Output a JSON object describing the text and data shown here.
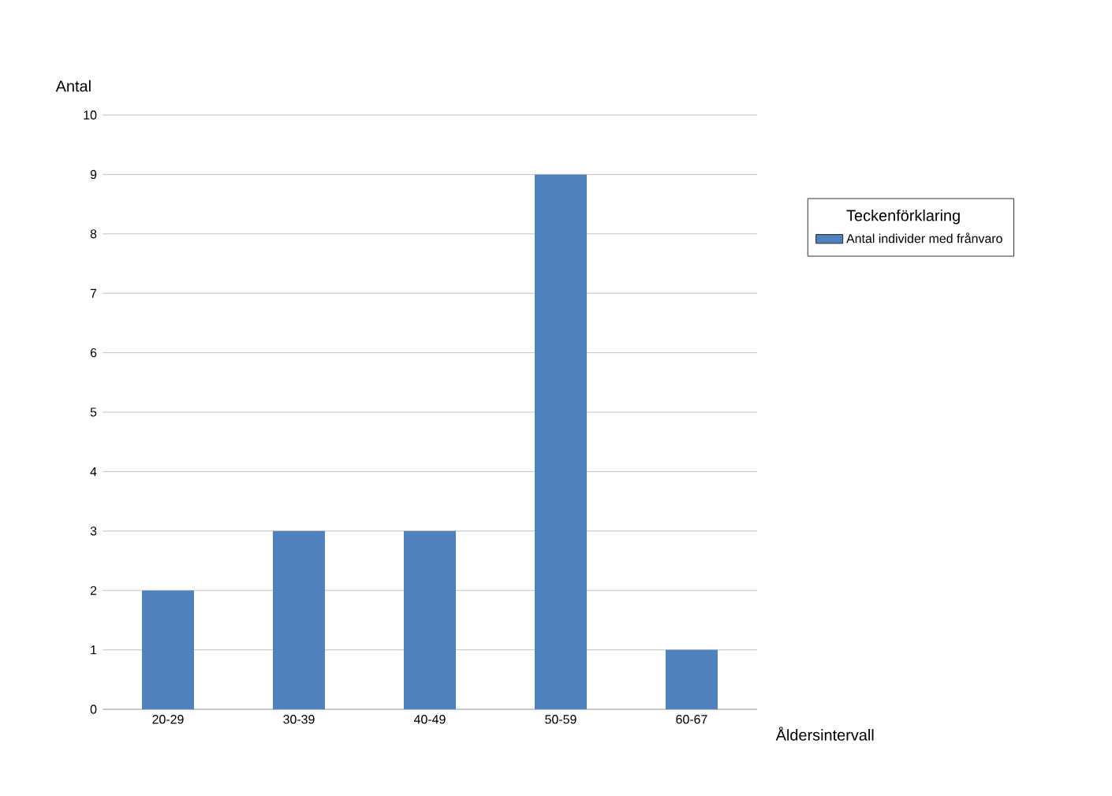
{
  "chart_data": {
    "type": "bar",
    "ylabel": "Antal",
    "xlabel": "Åldersintervall",
    "legend_title": "Teckenförklaring",
    "categories": [
      "20-29",
      "30-39",
      "40-49",
      "50-59",
      "60-67"
    ],
    "series": [
      {
        "name": "Antal individer med frånvaro",
        "color": "#4f81bd",
        "values": [
          2,
          3,
          3,
          9,
          1
        ]
      }
    ],
    "ylim": [
      0,
      10
    ],
    "yticks": [
      0,
      1,
      2,
      3,
      4,
      5,
      6,
      7,
      8,
      9,
      10
    ],
    "grid": "y",
    "legend": "right"
  }
}
